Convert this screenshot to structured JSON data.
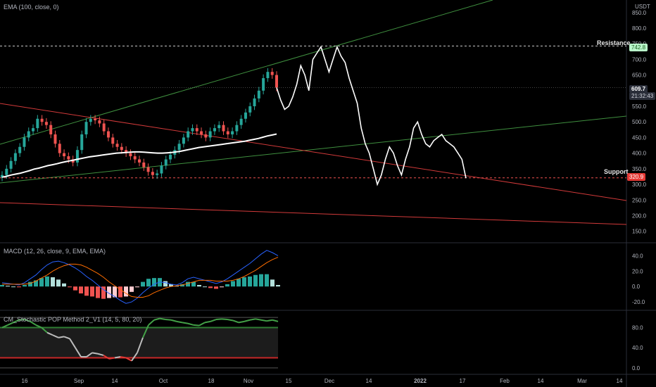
{
  "header": {
    "currency": "USDT"
  },
  "indicators": {
    "ema_label": "EMA (100, close, 0)",
    "macd_label": "MACD (12, 26, close, 9, EMA, EMA)",
    "stoch_label": "CM_Stochastic POP Method 2_V1 (14, 5, 80, 20)"
  },
  "annotations": {
    "resistance": "Resistance",
    "support": "Support"
  },
  "tags": {
    "resistance_price": "742.8",
    "current_price": "609.7",
    "countdown": "21:32:43",
    "support_price": "320.9"
  },
  "colors": {
    "bull": "#26a69a",
    "bear": "#ef5350",
    "ema": "#ffffff",
    "projection": "#ffffff",
    "trend_green": "#3f8f3f",
    "trend_red": "#d23a3a",
    "macd": "#2962ff",
    "signal": "#ff6d00",
    "stoch_ob": "#2e7d32",
    "stoch_os": "#c62828"
  },
  "chart_data": [
    {
      "type": "candlestick",
      "title": "",
      "ylim": [
        120,
        890
      ],
      "y_ticks": [
        "850.0",
        "800.0",
        "750.0",
        "700.0",
        "650.0",
        "600.0",
        "550.0",
        "500.0",
        "450.0",
        "400.0",
        "350.0",
        "300.0",
        "250.0",
        "200.0",
        "150.0"
      ],
      "x_ticks": [
        "16",
        "Sep",
        "14",
        "Oct",
        "18",
        "Nov",
        "15",
        "Dec",
        "14",
        "2022",
        "17",
        "Feb",
        "14",
        "Mar",
        "14"
      ],
      "horizontal_levels": [
        {
          "name": "Resistance",
          "value": 742.8
        },
        {
          "name": "Support",
          "value": 320.9
        },
        {
          "name": "Current",
          "value": 609.7
        }
      ],
      "candles_approx_close": [
        330,
        350,
        375,
        400,
        420,
        450,
        470,
        480,
        510,
        500,
        490,
        460,
        430,
        400,
        390,
        380,
        370,
        410,
        460,
        500,
        510,
        505,
        495,
        470,
        450,
        430,
        420,
        410,
        400,
        390,
        380,
        370,
        355,
        340,
        330,
        335,
        360,
        380,
        395,
        410,
        430,
        450,
        470,
        480,
        470,
        460,
        450,
        470,
        480,
        490,
        470,
        460,
        470,
        490,
        510,
        530,
        550,
        575,
        600,
        640,
        660,
        650,
        610
      ],
      "ema_100": [
        323,
        326,
        330,
        333,
        336,
        340,
        344,
        349,
        352,
        356,
        360,
        363,
        366,
        370,
        373,
        376,
        379,
        382,
        385,
        388,
        390,
        392,
        394,
        396,
        398,
        400,
        401,
        402,
        403,
        404,
        404,
        403,
        402,
        401,
        400,
        400,
        401,
        402,
        404,
        406,
        409,
        412,
        415,
        418,
        420,
        422,
        424,
        426,
        428,
        430,
        432,
        434,
        436,
        438,
        441,
        444,
        447,
        451,
        455,
        458,
        461
      ],
      "projection": [
        610,
        570,
        540,
        550,
        580,
        620,
        680,
        650,
        600,
        700,
        720,
        740,
        700,
        660,
        700,
        740,
        710,
        690,
        640,
        600,
        560,
        480,
        430,
        400,
        350,
        300,
        330,
        380,
        420,
        400,
        360,
        330,
        380,
        420,
        480,
        500,
        460,
        430,
        420,
        440,
        450,
        460,
        440,
        430,
        420,
        400,
        380,
        320
      ]
    },
    {
      "type": "line",
      "title": "",
      "ylim": [
        -30,
        55
      ],
      "y_ticks": [
        "40.0",
        "20.0",
        "0.0",
        "-20.0"
      ],
      "series": [
        {
          "name": "MACD",
          "values": [
            5,
            4,
            3,
            2,
            5,
            10,
            15,
            22,
            28,
            32,
            33,
            31,
            28,
            24,
            19,
            13,
            8,
            2,
            -4,
            -9,
            -13,
            -18,
            -22,
            -20,
            -15,
            -8,
            -2,
            3,
            6,
            5,
            3,
            2,
            5,
            10,
            12,
            10,
            8,
            6,
            4,
            6,
            10,
            15,
            20,
            25,
            30,
            36,
            42,
            47,
            44,
            40
          ]
        },
        {
          "name": "Signal",
          "values": [
            3,
            3,
            3,
            3,
            3,
            4,
            7,
            11,
            15,
            20,
            24,
            27,
            29,
            29,
            28,
            25,
            21,
            17,
            12,
            6,
            1,
            -4,
            -9,
            -13,
            -14,
            -14,
            -12,
            -8,
            -5,
            -2,
            0,
            1,
            2,
            4,
            6,
            8,
            8,
            8,
            7,
            7,
            7,
            8,
            10,
            13,
            17,
            21,
            26,
            31,
            35,
            38
          ]
        }
      ],
      "histogram": [
        2,
        1,
        0,
        -1,
        2,
        6,
        8,
        11,
        13,
        12,
        9,
        4,
        -1,
        -5,
        -9,
        -12,
        -13,
        -15,
        -16,
        -15,
        -14,
        -14,
        -13,
        -7,
        -1,
        6,
        10,
        11,
        11,
        7,
        3,
        1,
        3,
        6,
        6,
        2,
        0,
        -2,
        -3,
        -1,
        3,
        7,
        10,
        12,
        13,
        15,
        16,
        16,
        9,
        2
      ]
    },
    {
      "type": "line",
      "title": "",
      "ylim": [
        -10,
        110
      ],
      "y_ticks": [
        "80.0",
        "40.0",
        "0.0"
      ],
      "bands": {
        "upper": 80,
        "lower": 20
      },
      "series": [
        {
          "name": "Stochastic",
          "values": [
            80,
            85,
            90,
            95,
            96,
            92,
            85,
            80,
            70,
            65,
            60,
            62,
            58,
            40,
            22,
            22,
            30,
            28,
            25,
            18,
            20,
            22,
            20,
            14,
            30,
            60,
            85,
            95,
            98,
            96,
            95,
            92,
            90,
            88,
            85,
            84,
            90,
            92,
            96,
            97,
            96,
            94,
            90,
            92,
            95,
            97,
            95,
            93,
            95,
            92
          ]
        }
      ]
    }
  ]
}
